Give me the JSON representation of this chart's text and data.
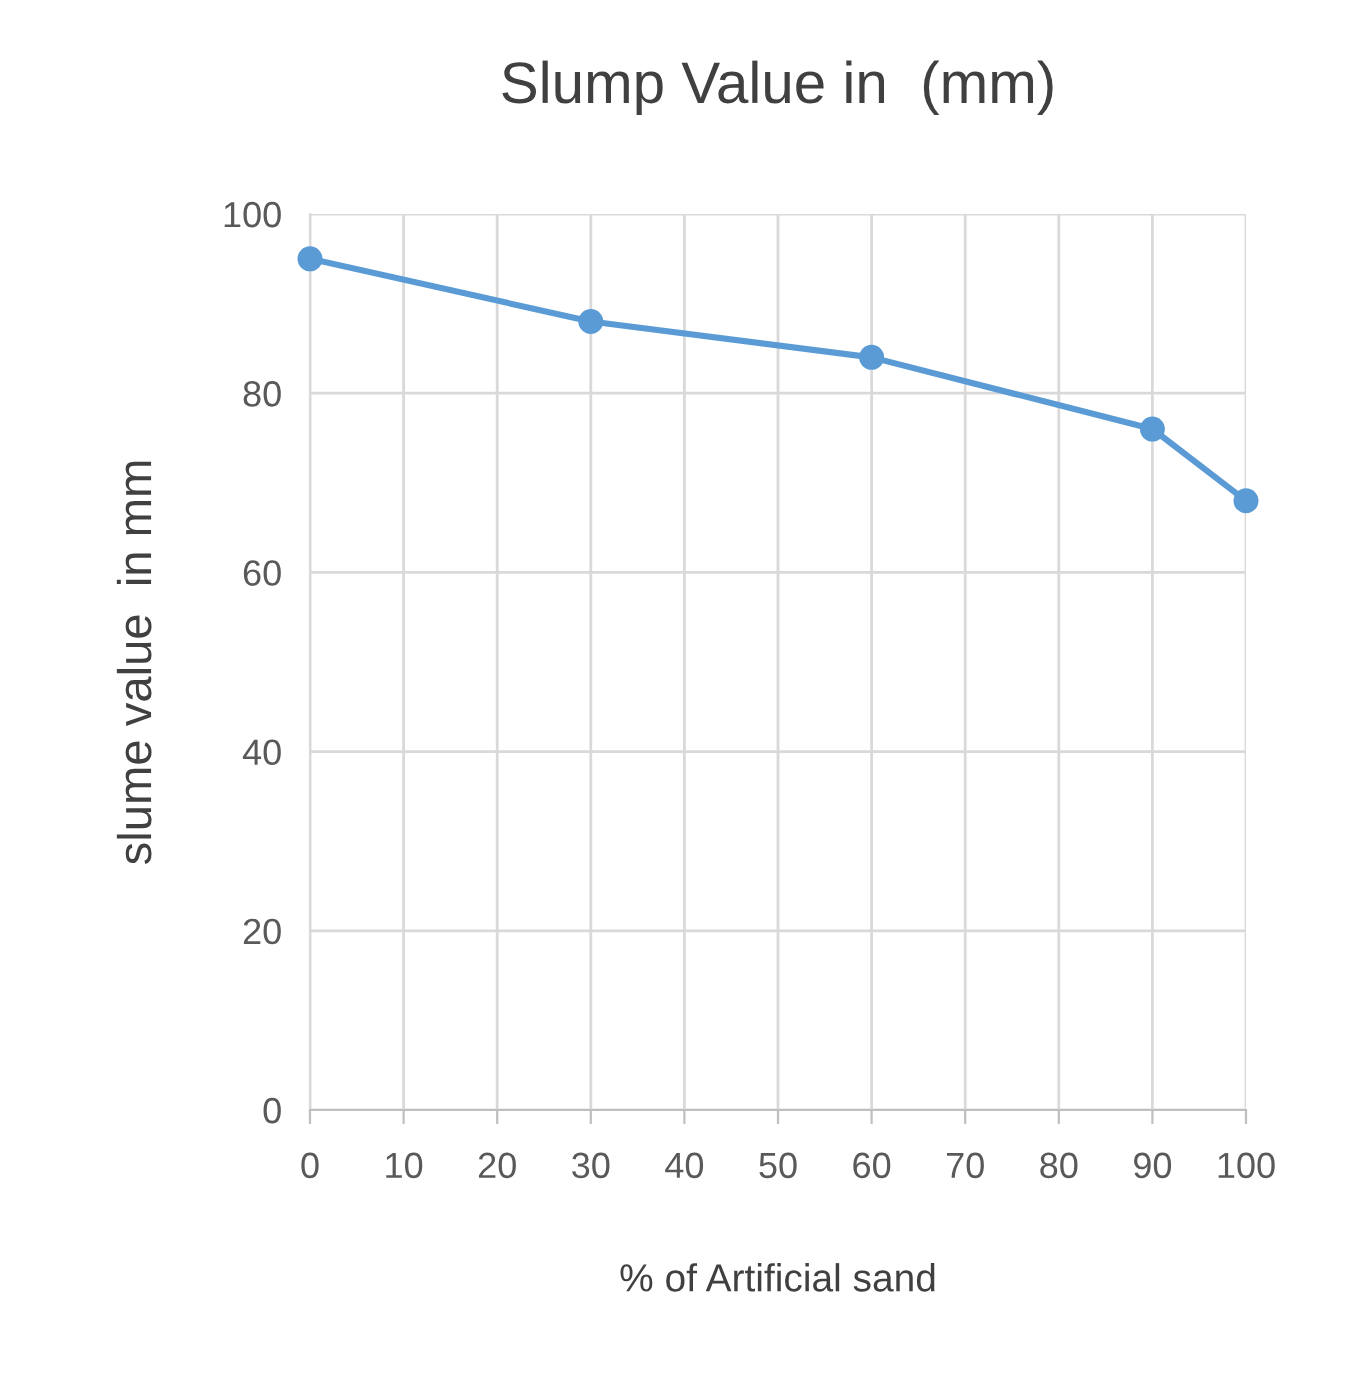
{
  "chart_data": {
    "type": "line",
    "title": "Slump Value in  (mm)",
    "xlabel": "% of Artificial sand",
    "ylabel": "slume value  in mm",
    "x": [
      0,
      30,
      60,
      90,
      100
    ],
    "series": [
      {
        "color": "#5b9bd5",
        "values": [
          95,
          88,
          84,
          76,
          68
        ]
      }
    ],
    "xlim": [
      0,
      100
    ],
    "xticks": [
      0,
      10,
      20,
      30,
      40,
      50,
      60,
      70,
      80,
      90,
      100
    ],
    "ylim": [
      0,
      100
    ],
    "yticks": [
      0,
      20,
      40,
      60,
      80,
      100
    ],
    "grid": true,
    "marker": "circle",
    "line_style": "solid"
  }
}
